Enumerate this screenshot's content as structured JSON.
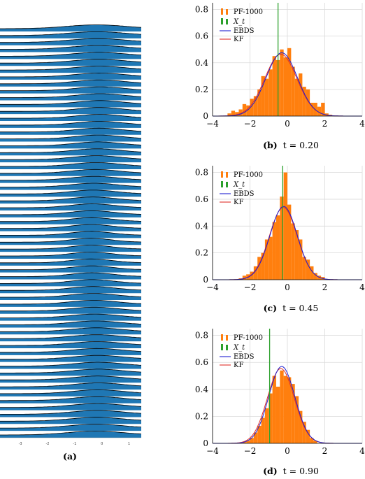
{
  "panel_a": {
    "caption_label": "(a)",
    "x_ticks": [
      "-3",
      "-2",
      "-1",
      "0",
      "1"
    ]
  },
  "captions": {
    "b": {
      "label": "(b)",
      "text": "t = 0.20"
    },
    "c": {
      "label": "(c)",
      "text": "t = 0.45"
    },
    "d": {
      "label": "(d)",
      "text": "t = 0.90"
    }
  },
  "colors": {
    "ridge_fill": "#1f77b4",
    "histogram": "#ff7f0e",
    "true_state": "#2ca02c",
    "ebds": "#1f1fd0",
    "kf": "#e0302a"
  },
  "chart_data": [
    {
      "type": "line",
      "panel": "a",
      "description_series": "ridgeline of densities",
      "n_curves": 60,
      "x_ticks": [
        -3,
        -2,
        -1,
        0,
        1
      ],
      "xlim": [
        -3.75,
        1.45
      ]
    },
    {
      "type": "bar",
      "panel": "b",
      "xlim": [
        -4,
        4
      ],
      "ylim": [
        0,
        0.85
      ],
      "x_ticks": [
        -4,
        -2,
        0,
        2,
        4
      ],
      "y_ticks": [
        0,
        0.2,
        0.4,
        0.6,
        0.8
      ],
      "legend": [
        "PF-1000",
        "X_t",
        "EBDS",
        "KF"
      ],
      "legend_position": "top-left",
      "true_state": -0.5,
      "ebds": {
        "mean": -0.3,
        "sd": 0.84
      },
      "kf": {
        "mean": -0.35,
        "sd": 0.86
      },
      "hist_bin_width": 0.2,
      "hist_bins": [
        {
          "x0": -3.2,
          "h": 0.02
        },
        {
          "x0": -3.0,
          "h": 0.04
        },
        {
          "x0": -2.8,
          "h": 0.03
        },
        {
          "x0": -2.6,
          "h": 0.05
        },
        {
          "x0": -2.4,
          "h": 0.09
        },
        {
          "x0": -2.2,
          "h": 0.08
        },
        {
          "x0": -2.0,
          "h": 0.13
        },
        {
          "x0": -1.8,
          "h": 0.15
        },
        {
          "x0": -1.6,
          "h": 0.2
        },
        {
          "x0": -1.4,
          "h": 0.3
        },
        {
          "x0": -1.2,
          "h": 0.28
        },
        {
          "x0": -1.0,
          "h": 0.35
        },
        {
          "x0": -0.8,
          "h": 0.45
        },
        {
          "x0": -0.6,
          "h": 0.42
        },
        {
          "x0": -0.4,
          "h": 0.5
        },
        {
          "x0": -0.2,
          "h": 0.44
        },
        {
          "x0": 0.0,
          "h": 0.51
        },
        {
          "x0": 0.2,
          "h": 0.37
        },
        {
          "x0": 0.4,
          "h": 0.28
        },
        {
          "x0": 0.6,
          "h": 0.32
        },
        {
          "x0": 0.8,
          "h": 0.22
        },
        {
          "x0": 1.0,
          "h": 0.2
        },
        {
          "x0": 1.2,
          "h": 0.1
        },
        {
          "x0": 1.4,
          "h": 0.1
        },
        {
          "x0": 1.6,
          "h": 0.07
        },
        {
          "x0": 1.8,
          "h": 0.1
        },
        {
          "x0": 2.0,
          "h": 0.02
        },
        {
          "x0": 2.2,
          "h": 0.01
        }
      ]
    },
    {
      "type": "bar",
      "panel": "c",
      "xlim": [
        -4,
        4
      ],
      "ylim": [
        0,
        0.85
      ],
      "x_ticks": [
        -4,
        -2,
        0,
        2,
        4
      ],
      "y_ticks": [
        0,
        0.2,
        0.4,
        0.6,
        0.8
      ],
      "legend": [
        "PF-1000",
        "X_t",
        "EBDS",
        "KF"
      ],
      "legend_position": "top-left",
      "true_state": -0.25,
      "ebds": {
        "mean": -0.2,
        "sd": 0.73
      },
      "kf": {
        "mean": -0.22,
        "sd": 0.74
      },
      "hist_bin_width": 0.2,
      "hist_bins": [
        {
          "x0": -2.6,
          "h": 0.01
        },
        {
          "x0": -2.4,
          "h": 0.03
        },
        {
          "x0": -2.2,
          "h": 0.04
        },
        {
          "x0": -2.0,
          "h": 0.06
        },
        {
          "x0": -1.8,
          "h": 0.1
        },
        {
          "x0": -1.6,
          "h": 0.17
        },
        {
          "x0": -1.4,
          "h": 0.2
        },
        {
          "x0": -1.2,
          "h": 0.3
        },
        {
          "x0": -1.0,
          "h": 0.32
        },
        {
          "x0": -0.8,
          "h": 0.43
        },
        {
          "x0": -0.6,
          "h": 0.48
        },
        {
          "x0": -0.4,
          "h": 0.62
        },
        {
          "x0": -0.2,
          "h": 0.8
        },
        {
          "x0": 0.0,
          "h": 0.56
        },
        {
          "x0": 0.2,
          "h": 0.42
        },
        {
          "x0": 0.4,
          "h": 0.37
        },
        {
          "x0": 0.6,
          "h": 0.3
        },
        {
          "x0": 0.8,
          "h": 0.17
        },
        {
          "x0": 1.0,
          "h": 0.15
        },
        {
          "x0": 1.2,
          "h": 0.1
        },
        {
          "x0": 1.4,
          "h": 0.05
        },
        {
          "x0": 1.6,
          "h": 0.03
        },
        {
          "x0": 1.8,
          "h": 0.02
        }
      ]
    },
    {
      "type": "bar",
      "panel": "d",
      "xlim": [
        -4,
        4
      ],
      "ylim": [
        0,
        0.85
      ],
      "x_ticks": [
        -4,
        -2,
        0,
        2,
        4
      ],
      "y_ticks": [
        0,
        0.2,
        0.4,
        0.6,
        0.8
      ],
      "legend": [
        "PF-1000",
        "X_t",
        "EBDS",
        "KF"
      ],
      "legend_position": "top-left",
      "true_state": -0.95,
      "ebds": {
        "mean": -0.3,
        "sd": 0.7
      },
      "kf": {
        "mean": -0.35,
        "sd": 0.72
      },
      "hist_bin_width": 0.2,
      "hist_bins": [
        {
          "x0": -2.4,
          "h": 0.01
        },
        {
          "x0": -2.2,
          "h": 0.02
        },
        {
          "x0": -2.0,
          "h": 0.04
        },
        {
          "x0": -1.8,
          "h": 0.08
        },
        {
          "x0": -1.6,
          "h": 0.13
        },
        {
          "x0": -1.4,
          "h": 0.19
        },
        {
          "x0": -1.2,
          "h": 0.26
        },
        {
          "x0": -1.0,
          "h": 0.37
        },
        {
          "x0": -0.8,
          "h": 0.5
        },
        {
          "x0": -0.6,
          "h": 0.42
        },
        {
          "x0": -0.4,
          "h": 0.54
        },
        {
          "x0": -0.2,
          "h": 0.5
        },
        {
          "x0": 0.0,
          "h": 0.49
        },
        {
          "x0": 0.2,
          "h": 0.44
        },
        {
          "x0": 0.4,
          "h": 0.35
        },
        {
          "x0": 0.6,
          "h": 0.24
        },
        {
          "x0": 0.8,
          "h": 0.16
        },
        {
          "x0": 1.0,
          "h": 0.1
        },
        {
          "x0": 1.2,
          "h": 0.04
        },
        {
          "x0": 1.4,
          "h": 0.02
        }
      ]
    }
  ]
}
